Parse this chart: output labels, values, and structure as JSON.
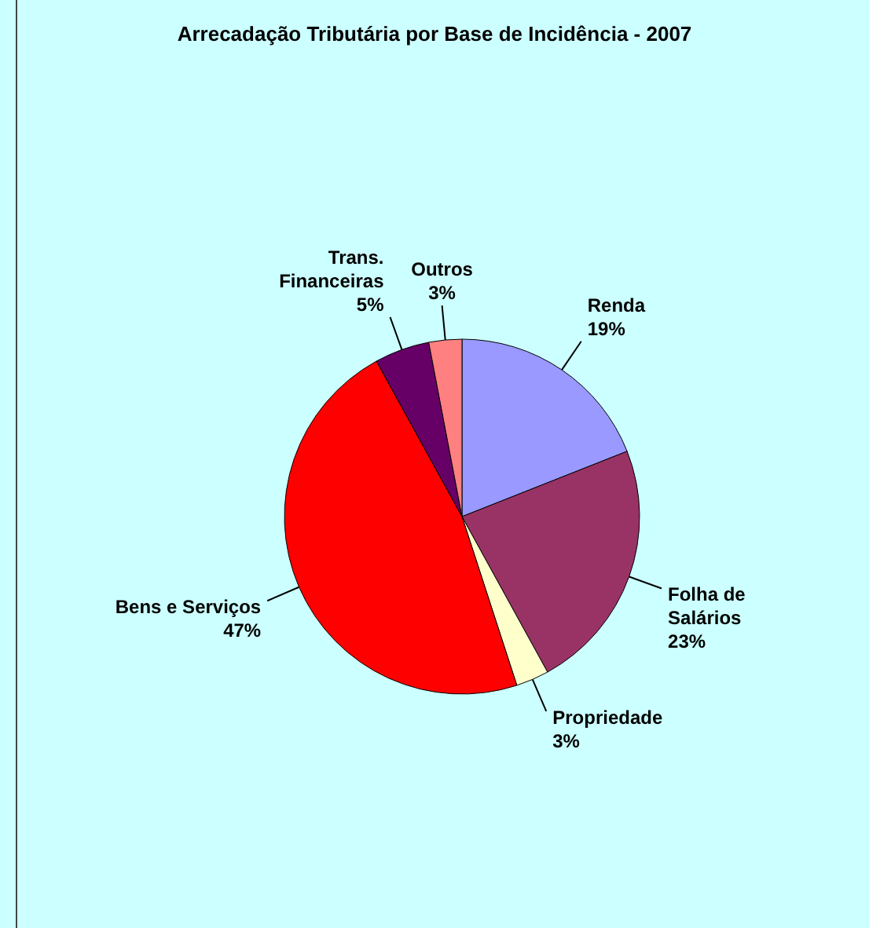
{
  "chart_data": {
    "type": "pie",
    "title": "Arrecadação Tributária por Base de Incidência - 2007",
    "categories": [
      "Renda",
      "Folha de Salários",
      "Propriedade",
      "Bens e Serviços",
      "Trans. Financeiras",
      "Outros"
    ],
    "values": [
      19,
      23,
      3,
      47,
      5,
      3
    ],
    "colors": [
      "#9999ff",
      "#993366",
      "#ffffcc",
      "#ff0000",
      "#660066",
      "#ff8080"
    ],
    "value_labels": [
      "19%",
      "23%",
      "3%",
      "47%",
      "5%",
      "3%"
    ],
    "legend": false
  }
}
